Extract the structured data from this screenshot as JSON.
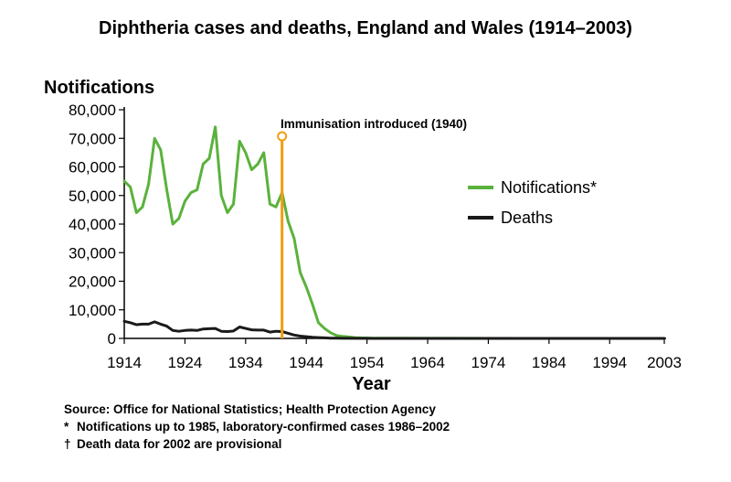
{
  "chart_data": {
    "type": "line",
    "title": "Diphtheria cases and deaths, England and Wales (1914–2003)",
    "ylabel": "Notifications",
    "xlabel": "Year",
    "ylim": [
      0,
      80000
    ],
    "xlim": [
      1914,
      2003
    ],
    "yticks": [
      0,
      10000,
      20000,
      30000,
      40000,
      50000,
      60000,
      70000,
      80000
    ],
    "ytick_labels": [
      "0",
      "10,000",
      "20,000",
      "30,000",
      "40,000",
      "50,000",
      "60,000",
      "70,000",
      "80,000"
    ],
    "xticks": [
      1914,
      1924,
      1934,
      1944,
      1954,
      1964,
      1974,
      1984,
      1994,
      2003
    ],
    "xtick_labels": [
      "1914",
      "1924",
      "1934",
      "1944",
      "1954",
      "1964",
      "1974",
      "1984",
      "1994",
      "2003"
    ],
    "annotation": {
      "label": "Immunisation introduced (1940)",
      "year": 1940,
      "color": "#f39c12"
    },
    "series": [
      {
        "name": "Notifications*",
        "color": "#5ab23c",
        "x": [
          1914,
          1915,
          1916,
          1917,
          1918,
          1919,
          1920,
          1921,
          1922,
          1923,
          1924,
          1925,
          1926,
          1927,
          1928,
          1929,
          1930,
          1931,
          1932,
          1933,
          1934,
          1935,
          1936,
          1937,
          1938,
          1939,
          1940,
          1941,
          1942,
          1943,
          1944,
          1945,
          1946,
          1947,
          1948,
          1949,
          1950,
          1951,
          1952,
          1953,
          1954,
          1955,
          1960,
          1970,
          1980,
          1990,
          2003
        ],
        "values": [
          55000,
          53000,
          44000,
          46000,
          54000,
          70000,
          66000,
          52000,
          40000,
          42000,
          48000,
          51000,
          52000,
          61000,
          63000,
          74000,
          50000,
          44000,
          47000,
          69000,
          65000,
          59000,
          61000,
          65000,
          47000,
          46000,
          51000,
          41000,
          35000,
          23000,
          18000,
          12000,
          5500,
          3500,
          2000,
          1000,
          700,
          500,
          300,
          200,
          150,
          100,
          50,
          20,
          10,
          10,
          5
        ]
      },
      {
        "name": "Deaths",
        "color": "#1a1a1a",
        "x": [
          1914,
          1915,
          1916,
          1917,
          1918,
          1919,
          1920,
          1921,
          1922,
          1923,
          1924,
          1925,
          1926,
          1927,
          1928,
          1929,
          1930,
          1931,
          1932,
          1933,
          1934,
          1935,
          1936,
          1937,
          1938,
          1939,
          1940,
          1941,
          1942,
          1943,
          1944,
          1945,
          1946,
          1947,
          1948,
          1949,
          1950,
          1955,
          1960,
          2003
        ],
        "values": [
          6000,
          5500,
          4800,
          5000,
          5000,
          5800,
          5000,
          4300,
          2800,
          2500,
          2800,
          2900,
          2800,
          3300,
          3400,
          3500,
          2500,
          2400,
          2600,
          4000,
          3500,
          3000,
          2900,
          2900,
          2200,
          2500,
          2400,
          1800,
          1200,
          800,
          600,
          400,
          300,
          200,
          100,
          50,
          30,
          10,
          5,
          0
        ]
      }
    ],
    "legend": [
      "Notifications*",
      "Deaths"
    ]
  },
  "footnotes": [
    {
      "symbol": "",
      "text": "Source: Office for National Statistics; Health Protection Agency"
    },
    {
      "symbol": "*",
      "text": "Notifications up to 1985, laboratory-confirmed cases 1986–2002"
    },
    {
      "symbol": "†",
      "text": "Death data for 2002 are provisional"
    }
  ]
}
